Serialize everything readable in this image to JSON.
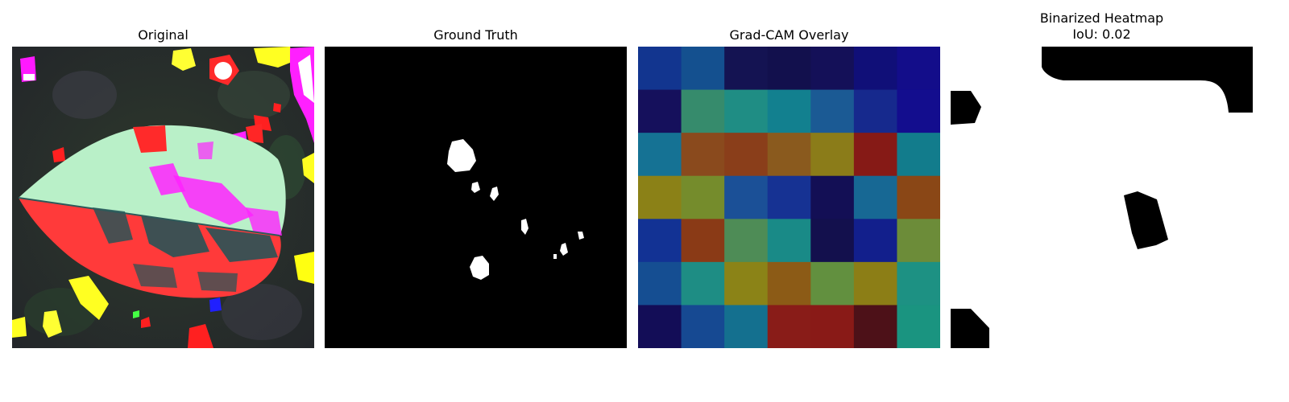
{
  "panels": {
    "original": {
      "title": "Original"
    },
    "ground_truth": {
      "title": "Ground Truth"
    },
    "gradcam": {
      "title": "Grad-CAM Overlay",
      "grid": [
        [
          "#12358f",
          "#14508f",
          "#141352",
          "#12104d",
          "#141058",
          "#100f78",
          "#130d8a"
        ],
        [
          "#15105c",
          "#368b6c",
          "#1f8d84",
          "#12808f",
          "#1b5a94",
          "#16298d",
          "#130d8e"
        ],
        [
          "#157294",
          "#8a4a1d",
          "#8a3e1a",
          "#8a5a1e",
          "#8b7c19",
          "#861a16",
          "#127c8c"
        ],
        [
          "#8b8117",
          "#758c2c",
          "#1b5097",
          "#163293",
          "#130f55",
          "#176894",
          "#8a4716"
        ],
        [
          "#123294",
          "#8a3a16",
          "#4e8c56",
          "#198a87",
          "#13104d",
          "#121f8c",
          "#6c8c39"
        ],
        [
          "#154e92",
          "#1e8d84",
          "#8b8317",
          "#8c5b16",
          "#62903f",
          "#8c7e16",
          "#1d9183"
        ],
        [
          "#130d57",
          "#164992",
          "#14708f",
          "#891c18",
          "#891a17",
          "#4d1118",
          "#1a9480"
        ]
      ]
    },
    "binarized": {
      "title": "Binarized Heatmap\nIoU: 0.02"
    }
  }
}
